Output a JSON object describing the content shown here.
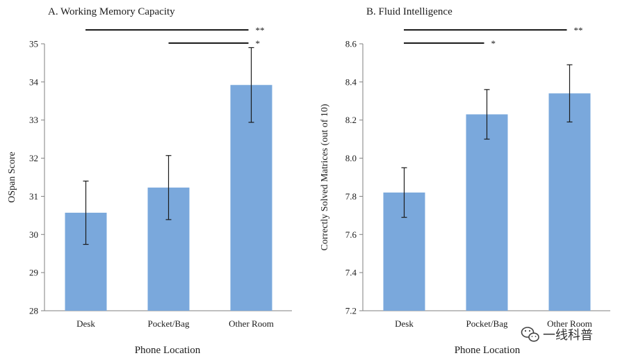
{
  "chart_data": [
    {
      "type": "bar",
      "title": "A. Working Memory Capacity",
      "xlabel": "Phone Location",
      "ylabel": "OSpan Score",
      "categories": [
        "Desk",
        "Pocket/Bag",
        "Other Room"
      ],
      "values": [
        30.57,
        31.23,
        33.92
      ],
      "error": [
        0.83,
        0.84,
        0.98
      ],
      "ylim": [
        28,
        35
      ],
      "yticks": [
        "28",
        "29",
        "30",
        "31",
        "32",
        "33",
        "34",
        "35"
      ],
      "grid": false,
      "bar_color": "#7aa8dc",
      "significance": [
        {
          "from": 0,
          "to": 2,
          "label": "**"
        },
        {
          "from": 1,
          "to": 2,
          "label": "*"
        }
      ]
    },
    {
      "type": "bar",
      "title": "B. Fluid Intelligence",
      "xlabel": "Phone Location",
      "ylabel": "Correctly Solved Matrices (out of 10)",
      "categories": [
        "Desk",
        "Pocket/Bag",
        "Other Room"
      ],
      "values": [
        7.82,
        8.23,
        8.34
      ],
      "error": [
        0.13,
        0.13,
        0.15
      ],
      "ylim": [
        7.2,
        8.6
      ],
      "yticks": [
        "7.2",
        "7.4",
        "7.6",
        "7.8",
        "8.0",
        "8.2",
        "8.4",
        "8.6"
      ],
      "grid": false,
      "bar_color": "#7aa8dc",
      "significance": [
        {
          "from": 0,
          "to": 2,
          "label": "**"
        },
        {
          "from": 0,
          "to": 1,
          "label": "*"
        }
      ]
    }
  ],
  "watermark": {
    "icon": "wechat-icon",
    "text": "一线科普"
  }
}
